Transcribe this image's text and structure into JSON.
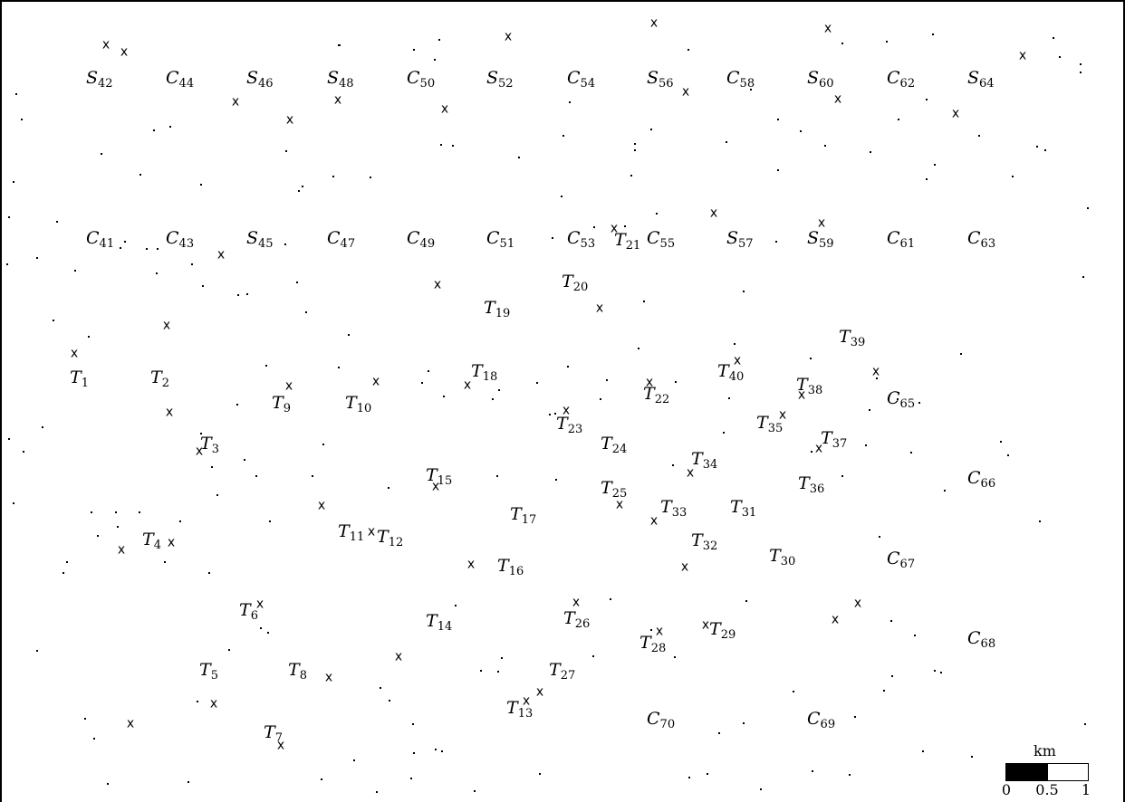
{
  "map": {
    "sites": [
      {
        "name": "S42",
        "p": "S",
        "n": "42"
      },
      {
        "name": "C44",
        "p": "C",
        "n": "44"
      },
      {
        "name": "S46",
        "p": "S",
        "n": "46"
      },
      {
        "name": "S48",
        "p": "S",
        "n": "48"
      },
      {
        "name": "C50",
        "p": "C",
        "n": "50"
      },
      {
        "name": "S52",
        "p": "S",
        "n": "52"
      },
      {
        "name": "C54",
        "p": "C",
        "n": "54"
      },
      {
        "name": "S56",
        "p": "S",
        "n": "56"
      },
      {
        "name": "C58",
        "p": "C",
        "n": "58"
      },
      {
        "name": "S60",
        "p": "S",
        "n": "60"
      },
      {
        "name": "C62",
        "p": "C",
        "n": "62"
      },
      {
        "name": "S64",
        "p": "S",
        "n": "64"
      },
      {
        "name": "C41",
        "p": "C",
        "n": "41"
      },
      {
        "name": "C43",
        "p": "C",
        "n": "43"
      },
      {
        "name": "S45",
        "p": "S",
        "n": "45"
      },
      {
        "name": "C47",
        "p": "C",
        "n": "47"
      },
      {
        "name": "C49",
        "p": "C",
        "n": "49"
      },
      {
        "name": "C51",
        "p": "C",
        "n": "51"
      },
      {
        "name": "C53",
        "p": "C",
        "n": "53"
      },
      {
        "name": "T21",
        "p": "T",
        "n": "21"
      },
      {
        "name": "C55",
        "p": "C",
        "n": "55"
      },
      {
        "name": "S57",
        "p": "S",
        "n": "57"
      },
      {
        "name": "S59",
        "p": "S",
        "n": "59"
      },
      {
        "name": "C61",
        "p": "C",
        "n": "61"
      },
      {
        "name": "C63",
        "p": "C",
        "n": "63"
      },
      {
        "name": "T20",
        "p": "T",
        "n": "20"
      },
      {
        "name": "T19",
        "p": "T",
        "n": "19"
      },
      {
        "name": "T39",
        "p": "T",
        "n": "39"
      },
      {
        "name": "T1",
        "p": "T",
        "n": "1"
      },
      {
        "name": "T2",
        "p": "T",
        "n": "2"
      },
      {
        "name": "T18",
        "p": "T",
        "n": "18"
      },
      {
        "name": "T40",
        "p": "T",
        "n": "40"
      },
      {
        "name": "T38",
        "p": "T",
        "n": "38"
      },
      {
        "name": "T9",
        "p": "T",
        "n": "9"
      },
      {
        "name": "T10",
        "p": "T",
        "n": "10"
      },
      {
        "name": "T22",
        "p": "T",
        "n": "22"
      },
      {
        "name": "C65",
        "p": "C",
        "n": "65"
      },
      {
        "name": "T23",
        "p": "T",
        "n": "23"
      },
      {
        "name": "T35",
        "p": "T",
        "n": "35"
      },
      {
        "name": "T3",
        "p": "T",
        "n": "3"
      },
      {
        "name": "T24",
        "p": "T",
        "n": "24"
      },
      {
        "name": "T37",
        "p": "T",
        "n": "37"
      },
      {
        "name": "T34",
        "p": "T",
        "n": "34"
      },
      {
        "name": "T15",
        "p": "T",
        "n": "15"
      },
      {
        "name": "C66",
        "p": "C",
        "n": "66"
      },
      {
        "name": "T36",
        "p": "T",
        "n": "36"
      },
      {
        "name": "T25",
        "p": "T",
        "n": "25"
      },
      {
        "name": "T17",
        "p": "T",
        "n": "17"
      },
      {
        "name": "T33",
        "p": "T",
        "n": "33"
      },
      {
        "name": "T31",
        "p": "T",
        "n": "31"
      },
      {
        "name": "T11",
        "p": "T",
        "n": "11"
      },
      {
        "name": "T12",
        "p": "T",
        "n": "12"
      },
      {
        "name": "T4",
        "p": "T",
        "n": "4"
      },
      {
        "name": "T32",
        "p": "T",
        "n": "32"
      },
      {
        "name": "T30",
        "p": "T",
        "n": "30"
      },
      {
        "name": "C67",
        "p": "C",
        "n": "67"
      },
      {
        "name": "T16",
        "p": "T",
        "n": "16"
      },
      {
        "name": "T6",
        "p": "T",
        "n": "6"
      },
      {
        "name": "T14",
        "p": "T",
        "n": "14"
      },
      {
        "name": "T26",
        "p": "T",
        "n": "26"
      },
      {
        "name": "T29",
        "p": "T",
        "n": "29"
      },
      {
        "name": "T28",
        "p": "T",
        "n": "28"
      },
      {
        "name": "C68",
        "p": "C",
        "n": "68"
      },
      {
        "name": "T5",
        "p": "T",
        "n": "5"
      },
      {
        "name": "T8",
        "p": "T",
        "n": "8"
      },
      {
        "name": "T27",
        "p": "T",
        "n": "27"
      },
      {
        "name": "T13",
        "p": "T",
        "n": "13"
      },
      {
        "name": "C70",
        "p": "C",
        "n": "70"
      },
      {
        "name": "C69",
        "p": "C",
        "n": "69"
      },
      {
        "name": "T7",
        "p": "T",
        "n": "7"
      }
    ],
    "marker_symbol": "x"
  },
  "scale": {
    "unit": "km",
    "ticks": [
      "0",
      "0.5",
      "1"
    ]
  }
}
